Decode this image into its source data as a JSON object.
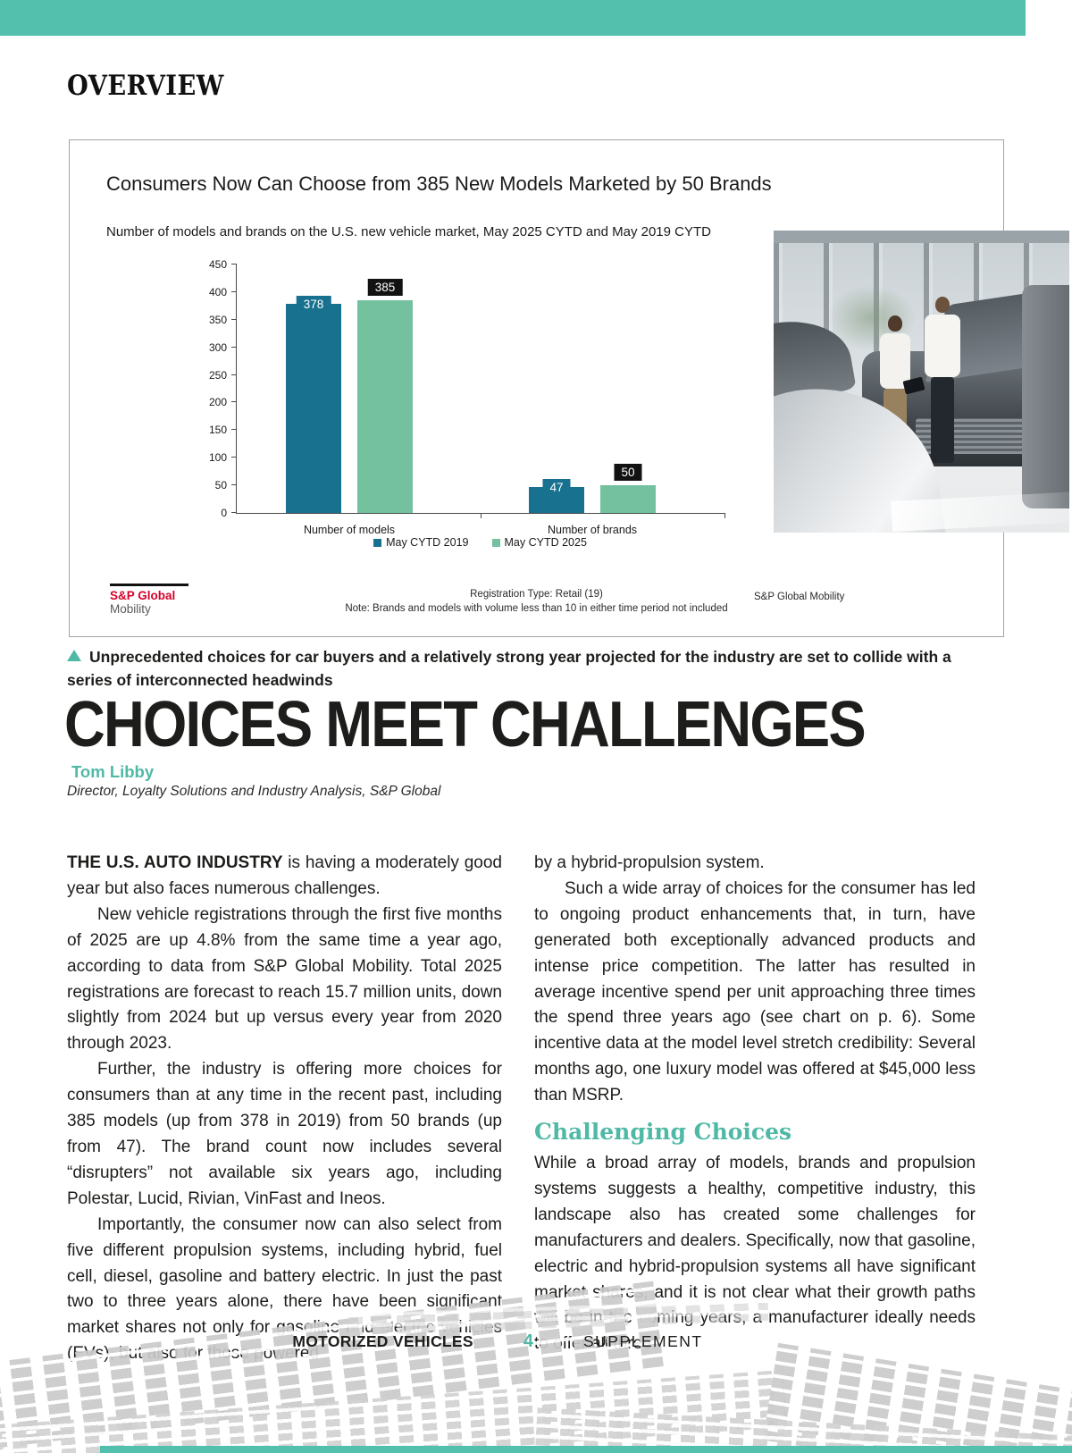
{
  "colors": {
    "top_bar_teal": "#52C0AD",
    "accent_teal": "#4FB9A6",
    "series_2019": "#17718F",
    "series_2025": "#73C19F",
    "label_2025_bg": "#121212",
    "logo_red": "#D6002A"
  },
  "header": {
    "section_label": "OVERVIEW"
  },
  "chart": {
    "title": "Consumers Now Can Choose from 385 New Models Marketed by 50 Brands",
    "subtitle": "Number of models and brands on the U.S. new vehicle market, May 2025 CYTD and May 2019 CYTD",
    "footnote_line1": "Registration Type: Retail (19)",
    "footnote_line2": "Note: Brands and models with volume less than 10 in either time period not included",
    "source_right": "S&P Global Mobility",
    "logo_line1": "S&P Global",
    "logo_line2": "Mobility"
  },
  "chart_data": {
    "type": "bar",
    "categories": [
      "Number of models",
      "Number of brands"
    ],
    "series": [
      {
        "name": "May CYTD 2019",
        "color": "#17718F",
        "label_bg": "#17718F",
        "values": [
          378,
          47
        ]
      },
      {
        "name": "May CYTD 2025",
        "color": "#73C19F",
        "label_bg": "#121212",
        "values": [
          385,
          50
        ]
      }
    ],
    "ylim": [
      0,
      450
    ],
    "ytick_step": 50,
    "grid": false,
    "legend_position": "bottom-center"
  },
  "caption": {
    "text": "Unprecedented choices for car buyers and a relatively strong year projected for the industry are set to collide with a series of interconnected headwinds"
  },
  "article": {
    "headline": "CHOICES MEET CHALLENGES",
    "author_name": "Tom Libby",
    "author_title": "Director, Loyalty Solutions and Industry Analysis, S&P Global",
    "lead_in": "THE U.S. AUTO INDUSTRY",
    "p1_rest": " is having a moderately good year but also faces numerous challenges.",
    "p2": "New vehicle registrations through the first five months of 2025 are up 4.8% from the same time a year ago, according to data from S&P Global Mobility. Total 2025 registrations are forecast to reach 15.7 million units, down slightly from 2024 but up versus every year from 2020 through 2023.",
    "p3": "Further, the industry is offering more choices for consumers than at any time in the recent past, including 385 models (up from 378 in 2019) from 50 brands (up from 47). The brand count now includes several “disrupters” not available six years ago, including Polestar, Lucid, Rivian, VinFast and Ineos.",
    "p4": "Importantly, the consumer now can also select from five different propulsion systems, including hybrid, fuel cell, diesel, gasoline and battery electric. In just the past two to three years alone, there have been significant market shares not only for gasoline and electric vehicles (EVs), but also for those powered",
    "p5": "by a hybrid-propulsion system.",
    "p6": "Such a wide array of choices for the consumer has led to ongoing product enhancements that, in turn, have generated both exceptionally advanced products and intense price competition. The latter has resulted in average incentive spend per unit approaching three times the spend three years ago (see chart on p. 6). Some incentive data at the model level stretch credibility: Several months ago, one luxury model was offered at $45,000 less than MSRP.",
    "subhead": "Challenging Choices",
    "p7": "While a broad array of models, brands and propulsion systems suggests a healthy, competitive industry, this landscape also has created some challenges for manufacturers and dealers. Specifically, now that gasoline, electric and hybrid-propulsion systems all have significant market shares, and it is not clear what their growth paths will be in the coming years, a manufacturer ideally needs to offer all three."
  },
  "footer": {
    "left": "MOTORIZED VEHICLES",
    "page_number": "4",
    "right": "SUPPLEMENT"
  }
}
